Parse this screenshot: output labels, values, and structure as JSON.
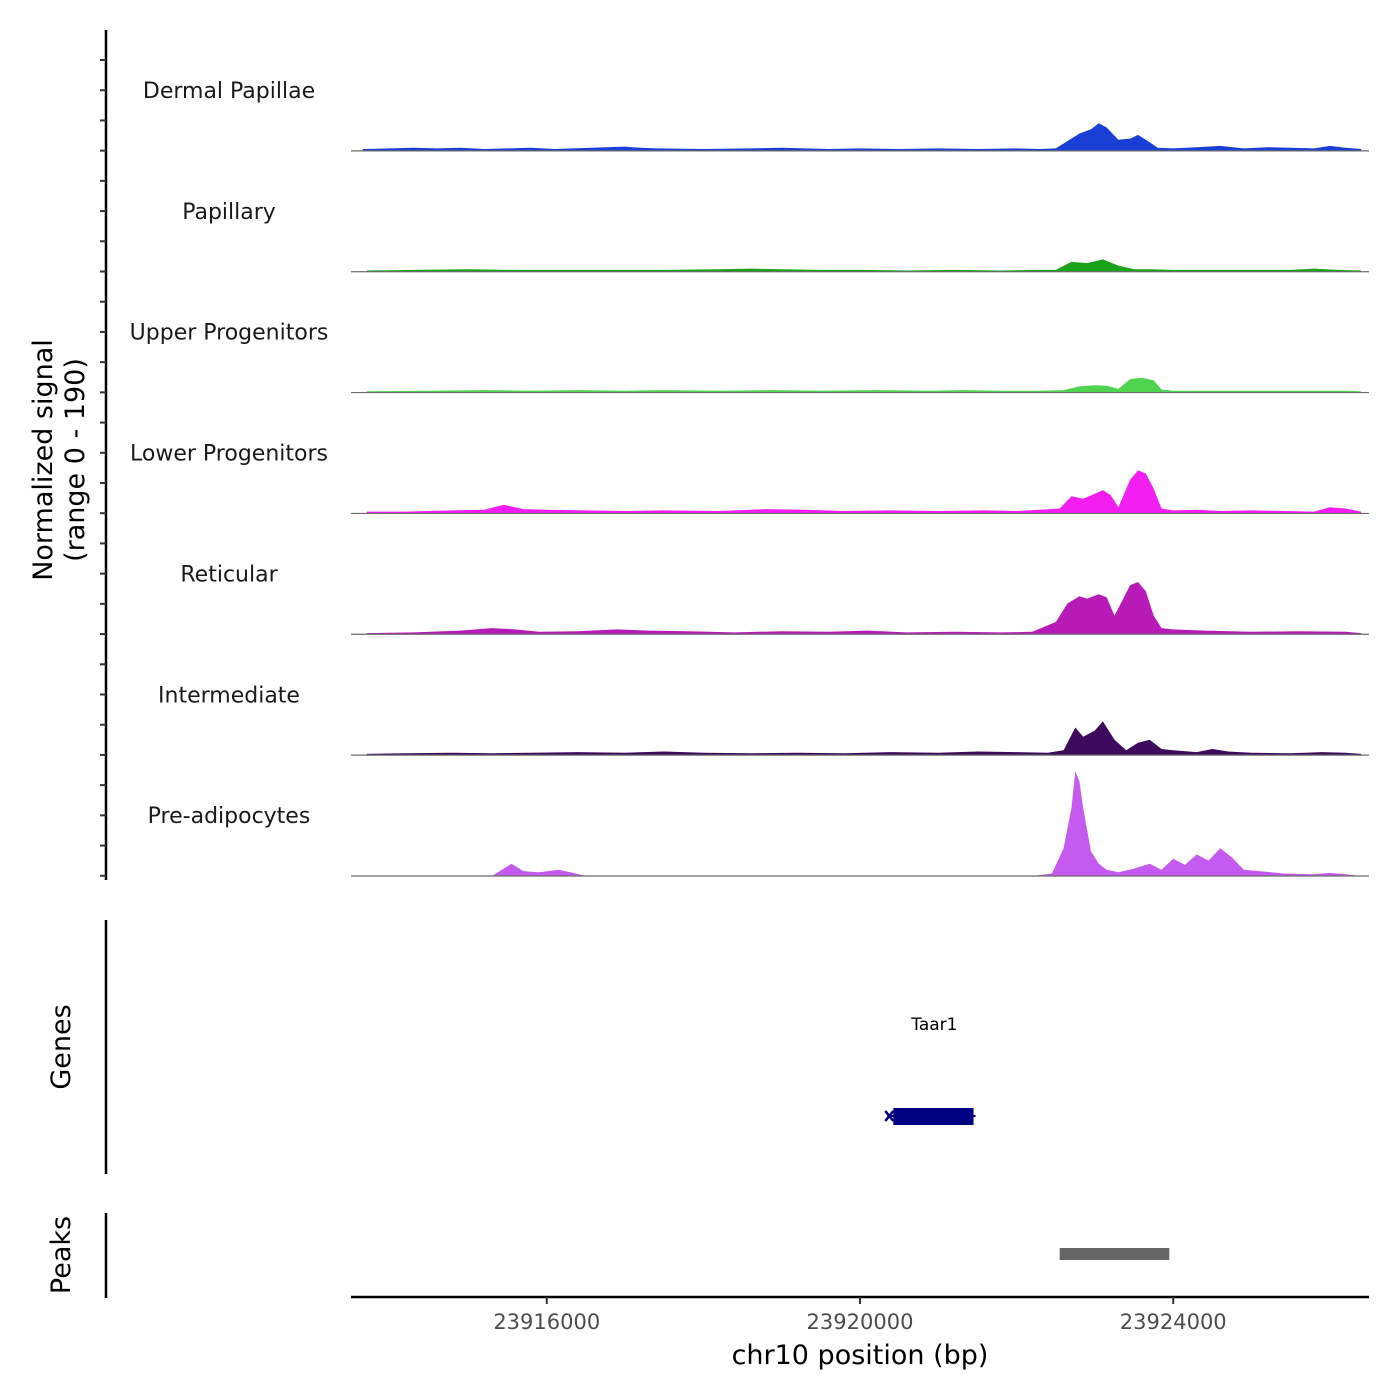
{
  "chart_data": {
    "type": "area",
    "chromosome": "chr10",
    "xlabel": "chr10 position (bp)",
    "xlim": [
      23913500,
      23926500
    ],
    "x_ticks": [
      23916000,
      23920000,
      23924000
    ],
    "x_tick_labels": [
      "23916000",
      "23920000",
      "23924000"
    ],
    "ylabel_line1": "Normalized signal",
    "ylabel_line2": "(range 0 - 190)",
    "ylim": [
      0,
      190
    ],
    "genes_label": "Genes",
    "peaks_label": "Peaks",
    "tracks": [
      {
        "name": "Dermal Papillae",
        "color": "#1a3fd6",
        "x": [
          23913650,
          23914000,
          23914300,
          23914600,
          23914900,
          23915200,
          23915500,
          23915800,
          23916100,
          23917000,
          23917200,
          23917400,
          23918000,
          23918600,
          23919000,
          23919600,
          23920000,
          23920500,
          23921000,
          23921500,
          23922000,
          23922300,
          23922500,
          23922600,
          23922800,
          23922950,
          23923050,
          23923150,
          23923300,
          23923450,
          23923550,
          23923700,
          23923800,
          23924000,
          23924300,
          23924600,
          23924900,
          23925200,
          23925500,
          23925800,
          23926000,
          23926200,
          23926400
        ],
        "y": [
          3,
          4,
          5,
          4,
          5,
          3,
          4,
          5,
          3,
          7,
          5,
          4,
          3,
          4,
          5,
          3,
          4,
          3,
          4,
          3,
          4,
          3,
          4,
          12,
          28,
          35,
          45,
          38,
          18,
          20,
          26,
          14,
          5,
          4,
          6,
          8,
          4,
          6,
          5,
          4,
          8,
          5,
          3
        ]
      },
      {
        "name": "Papillary",
        "color": "#1aa31a",
        "x": [
          23913700,
          23914300,
          23915000,
          23915600,
          23916200,
          23916800,
          23917500,
          23918200,
          23918600,
          23919000,
          23919500,
          23920000,
          23920600,
          23921200,
          23921800,
          23922200,
          23922500,
          23922700,
          23922900,
          23923100,
          23923300,
          23923500,
          23923700,
          23924000,
          23924500,
          23925000,
          23925500,
          23925800,
          23926100,
          23926400
        ],
        "y": [
          2,
          3,
          4,
          3,
          3,
          3,
          3,
          4,
          5,
          4,
          3,
          3,
          2,
          3,
          2,
          3,
          3,
          16,
          14,
          20,
          10,
          4,
          4,
          3,
          3,
          3,
          3,
          5,
          3,
          2
        ],
        "labels_hidden": true
      },
      {
        "name": "Upper Progenitors",
        "color": "#4fd44f",
        "x": [
          23913700,
          23914500,
          23915200,
          23915800,
          23916400,
          23917000,
          23917500,
          23918200,
          23918900,
          23919500,
          23920200,
          23920900,
          23921300,
          23921800,
          23922300,
          23922600,
          23922800,
          23923000,
          23923150,
          23923300,
          23923450,
          23923600,
          23923750,
          23923850,
          23924000,
          23924500,
          23925000,
          23925600,
          23926200,
          23926400
        ],
        "y": [
          2,
          3,
          4,
          3,
          4,
          3,
          4,
          3,
          4,
          3,
          4,
          3,
          4,
          3,
          3,
          4,
          10,
          12,
          11,
          6,
          22,
          24,
          20,
          5,
          3,
          3,
          3,
          3,
          3,
          2
        ]
      },
      {
        "name": "Lower Progenitors",
        "color": "#f21ef2",
        "x": [
          23913700,
          23914200,
          23914800,
          23915200,
          23915450,
          23915700,
          23916000,
          23916500,
          23917000,
          23917500,
          23918200,
          23918800,
          23919300,
          23919800,
          23920400,
          23921000,
          23921600,
          23922000,
          23922300,
          23922550,
          23922700,
          23922850,
          23923000,
          23923100,
          23923200,
          23923300,
          23923450,
          23923550,
          23923650,
          23923750,
          23923850,
          23924000,
          23924300,
          23924600,
          23925000,
          23925400,
          23925800,
          23926000,
          23926200,
          23926400
        ],
        "y": [
          3,
          3,
          5,
          6,
          14,
          7,
          6,
          5,
          4,
          5,
          4,
          7,
          6,
          4,
          5,
          4,
          5,
          4,
          6,
          8,
          28,
          24,
          32,
          38,
          30,
          10,
          55,
          70,
          65,
          40,
          8,
          5,
          6,
          4,
          5,
          4,
          3,
          10,
          8,
          3
        ]
      },
      {
        "name": "Reticular",
        "color": "#b81ab8",
        "x": [
          23913700,
          23914300,
          23914900,
          23915300,
          23915600,
          23915900,
          23916400,
          23916900,
          23917300,
          23917800,
          23918400,
          23919000,
          23919600,
          23920100,
          23920600,
          23921200,
          23921800,
          23922200,
          23922500,
          23922650,
          23922800,
          23922900,
          23923050,
          23923150,
          23923250,
          23923350,
          23923450,
          23923550,
          23923650,
          23923750,
          23923850,
          23924000,
          23924400,
          23925000,
          23925600,
          23926200,
          23926400
        ],
        "y": [
          2,
          3,
          6,
          10,
          8,
          4,
          5,
          8,
          6,
          5,
          3,
          5,
          4,
          6,
          3,
          4,
          3,
          4,
          20,
          50,
          62,
          58,
          65,
          60,
          30,
          55,
          80,
          85,
          70,
          30,
          10,
          8,
          6,
          4,
          5,
          4,
          2
        ]
      },
      {
        "name": "Intermediate",
        "color": "#3d0a5c",
        "x": [
          23913700,
          23914200,
          23914800,
          23915300,
          23915800,
          23916400,
          23917000,
          23917500,
          23918000,
          23918600,
          23919200,
          23919800,
          23920400,
          23921000,
          23921500,
          23922000,
          23922400,
          23922600,
          23922750,
          23922850,
          23923000,
          23923100,
          23923250,
          23923400,
          23923550,
          23923700,
          23923850,
          23924000,
          23924300,
          23924500,
          23924700,
          23925000,
          23925500,
          23925900,
          23926200,
          23926400
        ],
        "y": [
          2,
          3,
          4,
          3,
          4,
          5,
          4,
          6,
          4,
          3,
          4,
          3,
          5,
          4,
          6,
          5,
          4,
          8,
          45,
          30,
          40,
          55,
          25,
          8,
          20,
          25,
          10,
          8,
          5,
          10,
          6,
          4,
          3,
          5,
          4,
          2
        ]
      },
      {
        "name": "Pre-adipocytes",
        "color": "#c45af0",
        "x": [
          23913700,
          23914500,
          23915300,
          23915450,
          23915550,
          23915700,
          23915900,
          23916150,
          23916300,
          23916500,
          23917500,
          23918500,
          23919500,
          23920500,
          23921500,
          23922200,
          23922450,
          23922600,
          23922700,
          23922750,
          23922800,
          23922850,
          23922950,
          23923050,
          23923150,
          23923300,
          23923500,
          23923700,
          23923850,
          23924000,
          23924150,
          23924300,
          23924450,
          23924600,
          23924750,
          23924900,
          23925100,
          23925400,
          23925800,
          23926000,
          23926200,
          23926400
        ],
        "y": [
          0,
          0,
          0,
          12,
          20,
          8,
          6,
          10,
          6,
          0,
          0,
          0,
          0,
          0,
          0,
          0,
          4,
          45,
          110,
          170,
          155,
          110,
          40,
          20,
          10,
          6,
          12,
          20,
          10,
          28,
          18,
          35,
          25,
          45,
          30,
          10,
          8,
          4,
          3,
          5,
          3,
          0
        ]
      }
    ],
    "genes": [
      {
        "name": "Taar1",
        "start": 23920400,
        "end": 23921450,
        "color": "#000080"
      }
    ],
    "peaks": [
      {
        "start": 23922550,
        "end": 23923950,
        "color": "#666666"
      }
    ]
  }
}
